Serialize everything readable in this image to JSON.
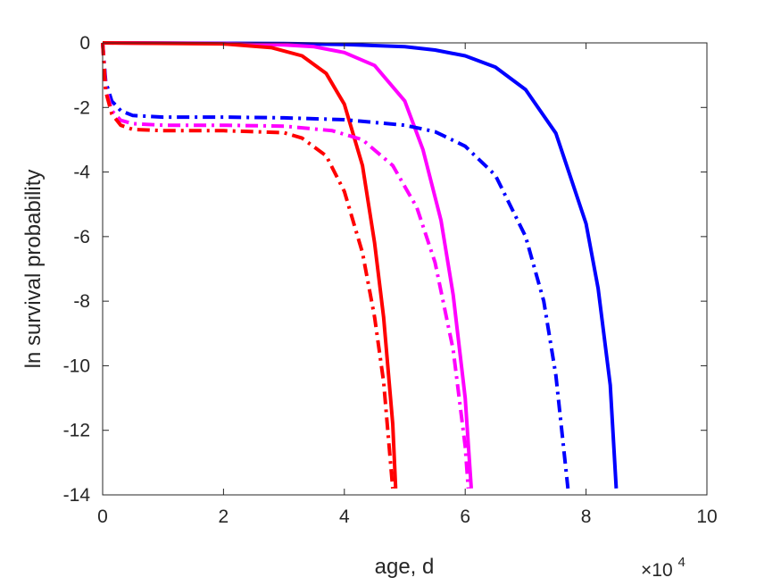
{
  "chart_data": {
    "type": "line",
    "title": "",
    "xlabel": "age, d",
    "ylabel": "ln survival probability",
    "x_multiplier": "×10",
    "x_multiplier_exp": "4",
    "xlim": [
      0,
      10
    ],
    "ylim": [
      -14,
      0
    ],
    "xticks": [
      "0",
      "2",
      "4",
      "6",
      "8",
      "10"
    ],
    "yticks": [
      "0",
      "-2",
      "-4",
      "-6",
      "-8",
      "-10",
      "-12",
      "-14"
    ],
    "grid": false,
    "legend": "none",
    "series": [
      {
        "color": "#0000ff",
        "style": "solid",
        "x": [
          0,
          3,
          4,
          5,
          5.5,
          6,
          6.5,
          7,
          7.5,
          8,
          8.2,
          8.4,
          8.5
        ],
        "y": [
          0,
          -0.02,
          -0.05,
          -0.12,
          -0.22,
          -0.4,
          -0.75,
          -1.45,
          -2.8,
          -5.6,
          -7.6,
          -10.6,
          -13.8
        ]
      },
      {
        "color": "#ff00ff",
        "style": "solid",
        "x": [
          0,
          2,
          3,
          3.5,
          4,
          4.5,
          5,
          5.3,
          5.6,
          5.8,
          6.0,
          6.1
        ],
        "y": [
          0,
          -0.02,
          -0.06,
          -0.12,
          -0.3,
          -0.7,
          -1.8,
          -3.3,
          -5.5,
          -7.8,
          -11.0,
          -13.8
        ]
      },
      {
        "color": "#ff0000",
        "style": "solid",
        "x": [
          0,
          2,
          2.8,
          3.3,
          3.7,
          4.0,
          4.3,
          4.5,
          4.65,
          4.8,
          4.85
        ],
        "y": [
          0,
          -0.03,
          -0.15,
          -0.4,
          -0.95,
          -1.9,
          -3.8,
          -6.2,
          -8.5,
          -11.8,
          -13.8
        ]
      },
      {
        "color": "#0000ff",
        "style": "dashdot",
        "x": [
          0,
          0.05,
          0.15,
          0.3,
          0.5,
          1,
          2,
          3,
          4,
          5,
          5.5,
          6,
          6.5,
          7,
          7.3,
          7.5,
          7.7
        ],
        "y": [
          0,
          -1.2,
          -1.8,
          -2.1,
          -2.25,
          -2.3,
          -2.3,
          -2.32,
          -2.38,
          -2.55,
          -2.75,
          -3.2,
          -4.1,
          -6.0,
          -8.0,
          -10.3,
          -13.8
        ]
      },
      {
        "color": "#ff00ff",
        "style": "dashdot",
        "x": [
          0,
          0.05,
          0.15,
          0.3,
          0.5,
          1,
          2,
          3,
          3.8,
          4.3,
          4.8,
          5.2,
          5.5,
          5.8,
          6.0,
          6.05
        ],
        "y": [
          0,
          -1.4,
          -2.1,
          -2.4,
          -2.5,
          -2.55,
          -2.55,
          -2.58,
          -2.72,
          -3.0,
          -3.8,
          -5.1,
          -6.8,
          -9.5,
          -12.5,
          -13.8
        ]
      },
      {
        "color": "#ff0000",
        "style": "dashdot",
        "x": [
          0,
          0.05,
          0.15,
          0.3,
          0.5,
          1,
          2,
          3,
          3.3,
          3.7,
          4.0,
          4.3,
          4.5,
          4.65,
          4.8
        ],
        "y": [
          0,
          -1.5,
          -2.2,
          -2.55,
          -2.68,
          -2.72,
          -2.72,
          -2.78,
          -2.95,
          -3.5,
          -4.6,
          -6.5,
          -8.5,
          -10.5,
          -13.8
        ]
      }
    ]
  }
}
